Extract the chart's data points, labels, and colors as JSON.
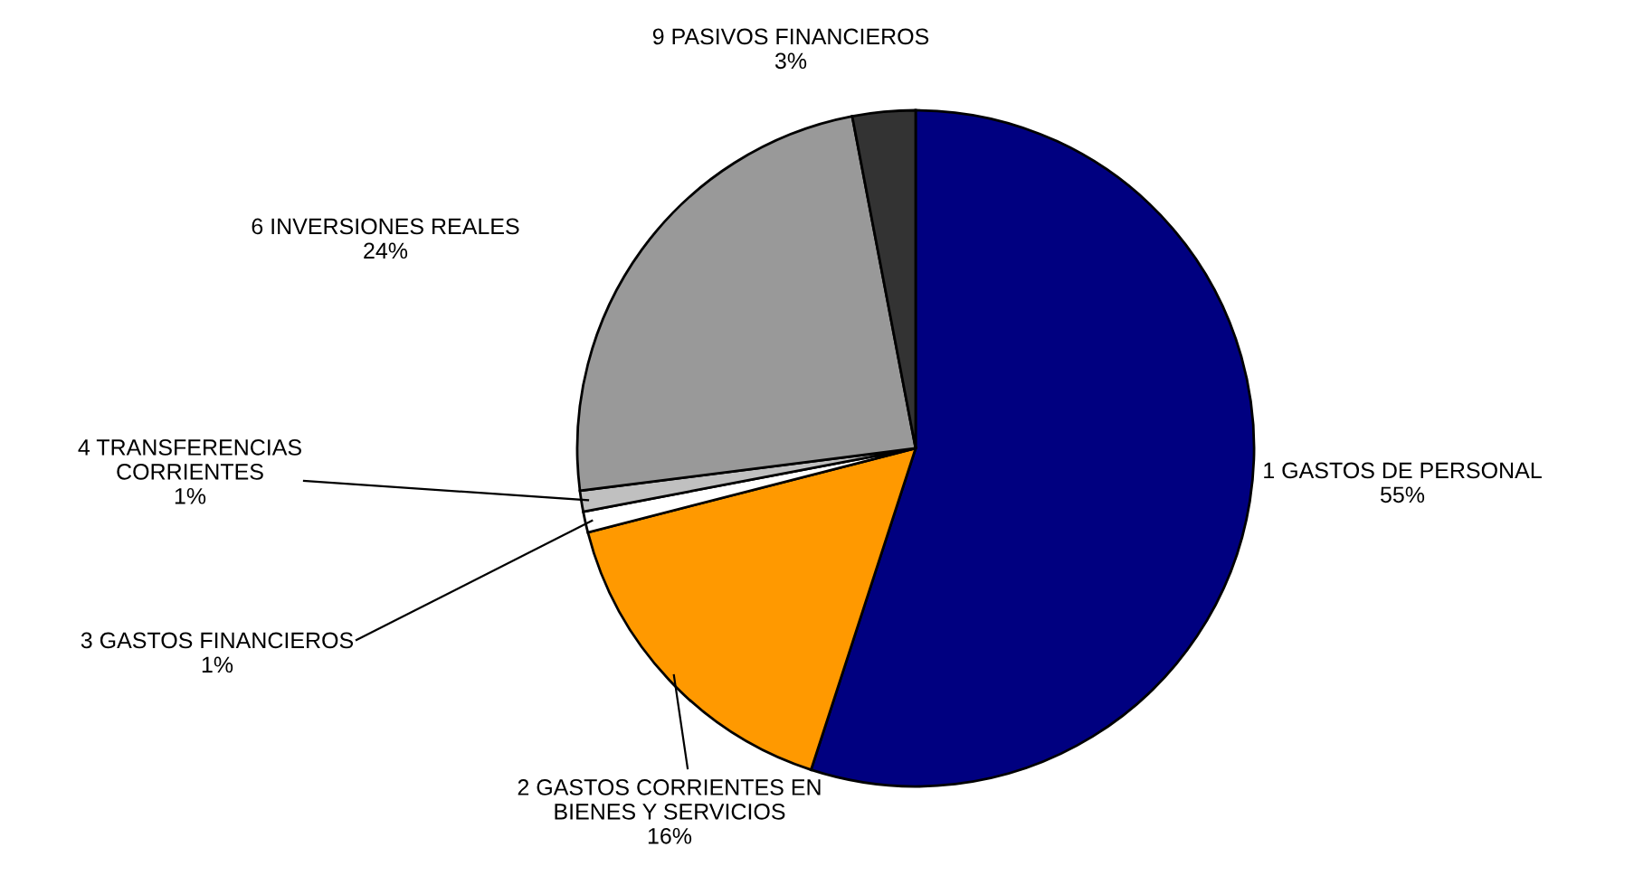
{
  "chart_data": {
    "type": "pie",
    "categories": [
      "1 GASTOS DE PERSONAL",
      "2 GASTOS CORRIENTES EN\nBIENES Y SERVICIOS",
      "3 GASTOS FINANCIEROS",
      "4 TRANSFERENCIAS\nCORRIENTES",
      "6 INVERSIONES REALES",
      "9 PASIVOS FINANCIEROS"
    ],
    "values": [
      55,
      16,
      1,
      1,
      24,
      3
    ],
    "value_labels": [
      "55%",
      "16%",
      "1%",
      "1%",
      "24%",
      "3%"
    ],
    "colors": [
      "#000080",
      "#ff9900",
      "#ffffff",
      "#c0c0c0",
      "#999999",
      "#333333"
    ],
    "legend": false
  }
}
